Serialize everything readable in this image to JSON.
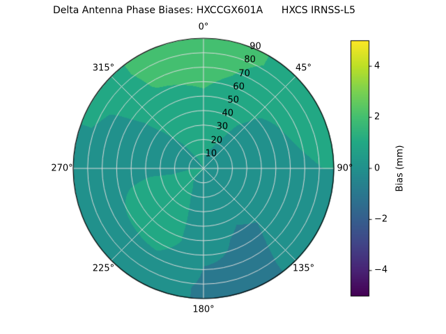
{
  "chart_data": {
    "type": "heatmap",
    "projection": "polar",
    "title": "Delta Antenna Phase Biases: HXCCGX601A      HXCS IRNSS-L5",
    "theta_zero_location": "N",
    "theta_direction": "clockwise",
    "angular_ticks": [
      {
        "angle_deg": 0,
        "label": "0°"
      },
      {
        "angle_deg": 45,
        "label": "45°"
      },
      {
        "angle_deg": 90,
        "label": "90°"
      },
      {
        "angle_deg": 135,
        "label": "135°"
      },
      {
        "angle_deg": 180,
        "label": "180°"
      },
      {
        "angle_deg": 225,
        "label": "225°"
      },
      {
        "angle_deg": 270,
        "label": "270°"
      },
      {
        "angle_deg": 315,
        "label": "315°"
      }
    ],
    "radial_ticks": [
      {
        "value": 10,
        "label": "10"
      },
      {
        "value": 20,
        "label": "20"
      },
      {
        "value": 30,
        "label": "30"
      },
      {
        "value": 40,
        "label": "40"
      },
      {
        "value": 50,
        "label": "50"
      },
      {
        "value": 60,
        "label": "60"
      },
      {
        "value": 70,
        "label": "70"
      },
      {
        "value": 80,
        "label": "80"
      },
      {
        "value": 90,
        "label": "90"
      }
    ],
    "radial_range": [
      0,
      90
    ],
    "radial_label_angle_deg": 22.5,
    "grid": {
      "radial_step": 10,
      "angular_step_deg": 45,
      "color": "#dcdcdc"
    },
    "colorbar": {
      "label": "Bias (mm)",
      "vmin": -5,
      "vmax": 5,
      "colormap": "viridis",
      "ticks": [
        {
          "value": -4,
          "label": "−4"
        },
        {
          "value": -2,
          "label": "−2"
        },
        {
          "value": 0,
          "label": "0"
        },
        {
          "value": 2,
          "label": "2"
        },
        {
          "value": 4,
          "label": "4"
        }
      ]
    },
    "contour_interval_mm": 1,
    "azimuth_deg": [
      0,
      30,
      60,
      90,
      120,
      150,
      180,
      210,
      240,
      270,
      300,
      330
    ],
    "zenith_band_centers_deg": [
      7.5,
      22.5,
      37.5,
      52.5,
      67.5,
      82.5
    ],
    "bias_mm": [
      [
        0.5,
        0.4,
        0.2,
        0.1,
        0.0,
        0.1,
        0.2,
        0.4,
        0.6,
        0.5,
        0.4,
        0.5
      ],
      [
        0.7,
        0.5,
        0.2,
        0.0,
        -0.1,
        -0.1,
        0.1,
        0.6,
        0.7,
        0.4,
        0.3,
        0.6
      ],
      [
        1.0,
        0.6,
        0.2,
        0.0,
        -0.3,
        -0.4,
        -0.1,
        0.9,
        1.0,
        0.3,
        0.3,
        0.8
      ],
      [
        1.4,
        0.8,
        0.3,
        0.1,
        -0.4,
        -0.6,
        -0.3,
        1.1,
        0.8,
        0.2,
        0.3,
        1.1
      ],
      [
        1.9,
        1.2,
        0.8,
        0.3,
        -0.3,
        -0.6,
        -0.5,
        0.4,
        0.3,
        0.2,
        0.4,
        1.6
      ],
      [
        2.1,
        1.5,
        1.2,
        0.5,
        -0.2,
        -0.6,
        -0.6,
        -0.1,
        0.1,
        0.3,
        0.6,
        1.8
      ]
    ],
    "colormap_stops": [
      [
        0.0,
        "#440154"
      ],
      [
        0.1,
        "#482475"
      ],
      [
        0.2,
        "#414487"
      ],
      [
        0.3,
        "#355f8d"
      ],
      [
        0.4,
        "#2a788e"
      ],
      [
        0.5,
        "#21918c"
      ],
      [
        0.6,
        "#22a884"
      ],
      [
        0.7,
        "#44bf70"
      ],
      [
        0.8,
        "#7ad151"
      ],
      [
        0.9,
        "#bddf26"
      ],
      [
        1.0,
        "#fde725"
      ]
    ],
    "background": "#ffffff"
  }
}
